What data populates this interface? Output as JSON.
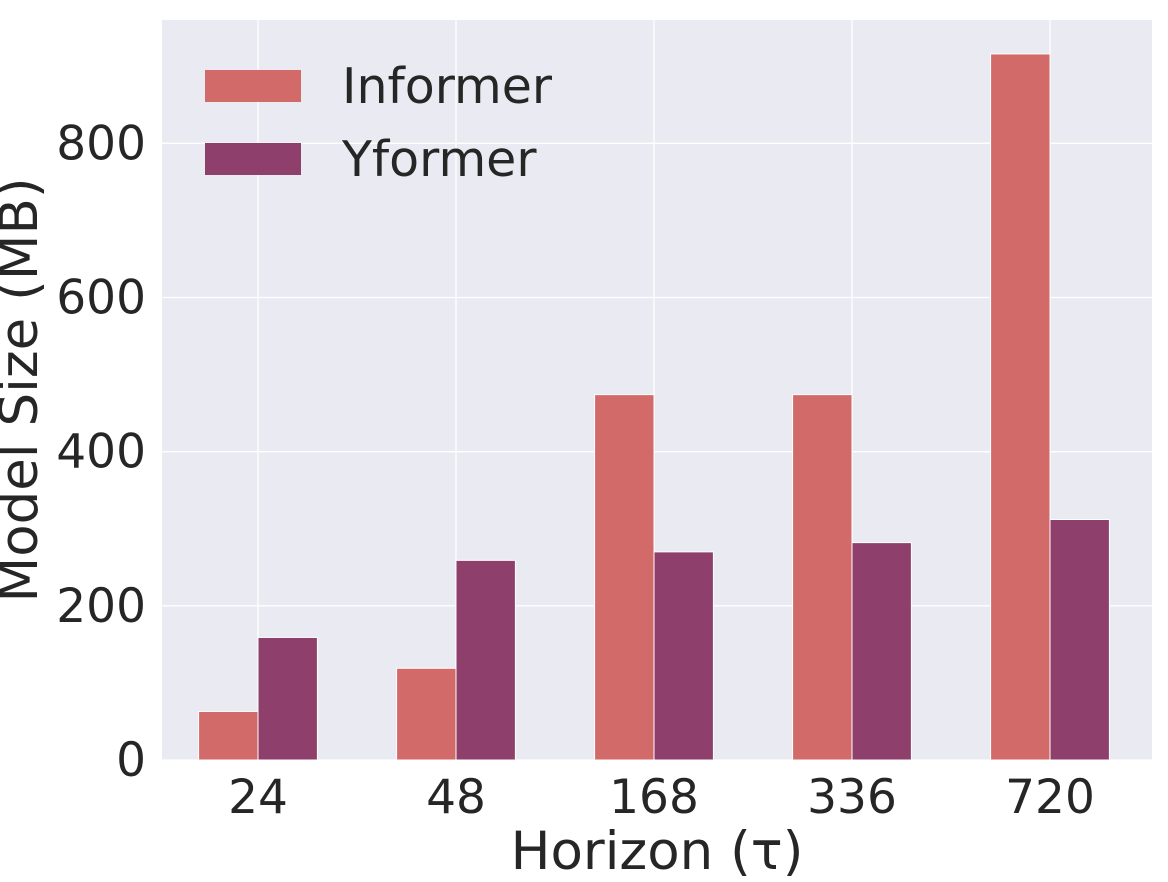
{
  "chart_data": {
    "type": "bar",
    "categories": [
      "24",
      "48",
      "168",
      "336",
      "720"
    ],
    "series": [
      {
        "name": "Informer",
        "values": [
          63,
          119,
          474,
          474,
          916
        ],
        "color": "#d16a68"
      },
      {
        "name": "Yformer",
        "values": [
          159,
          259,
          270,
          282,
          312
        ],
        "color": "#8e3f6c"
      }
    ],
    "xlabel": "Horizon (τ)",
    "ylabel": "Model Size (MB)",
    "ylim": [
      0,
      960
    ],
    "yticks": [
      "0",
      "200",
      "400",
      "600",
      "800"
    ],
    "grid": true,
    "legend_position": "top-left",
    "background": "#eaeaf2"
  }
}
